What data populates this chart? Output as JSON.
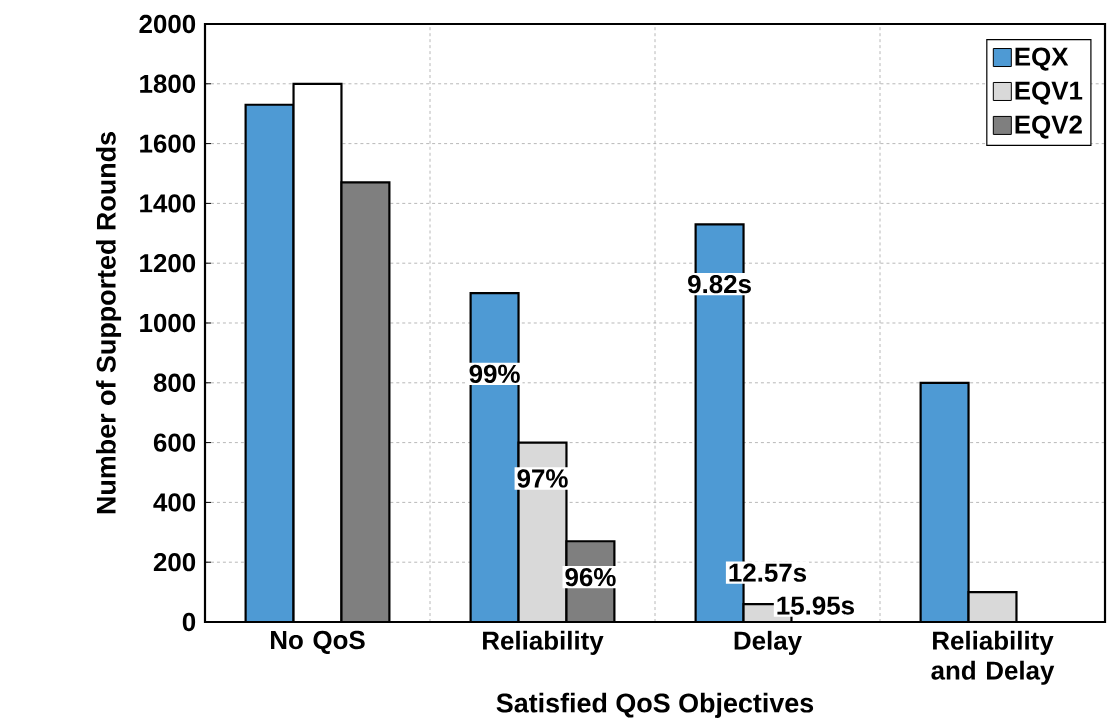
{
  "chart_data": {
    "type": "bar",
    "xlabel": "Satisfied QoS Objectives",
    "ylabel": "Number of Supported Rounds",
    "categories": [
      "No QoS",
      "Reliability",
      "Delay",
      "Reliability and Delay"
    ],
    "series": [
      {
        "name": "EQX",
        "color": "#4e9ad4",
        "values": [
          1730,
          1100,
          1330,
          800
        ]
      },
      {
        "name": "EQV1",
        "color": "#d9d9d9",
        "colors": [
          "#ffffff",
          "#d9d9d9",
          "#d9d9d9",
          "#d9d9d9"
        ],
        "values": [
          1800,
          600,
          60,
          100
        ]
      },
      {
        "name": "EQV2",
        "color": "#7f7f7f",
        "values": [
          1470,
          270,
          0,
          null
        ]
      }
    ],
    "annotations": [
      "99%",
      "97%",
      "96%",
      "9.82s",
      "12.57s",
      "15.95s"
    ],
    "ylim": [
      0,
      2000
    ],
    "yticks": [
      0,
      200,
      400,
      600,
      800,
      1000,
      1200,
      1400,
      1600,
      1800,
      2000
    ],
    "grid": true,
    "legend": "top right"
  }
}
